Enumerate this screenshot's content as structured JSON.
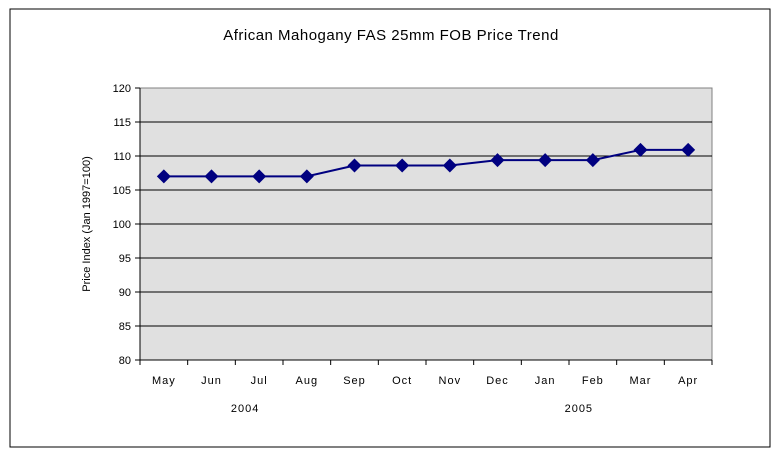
{
  "chart_data": {
    "type": "line",
    "title": "African Mahogany FAS 25mm FOB Price Trend",
    "xlabel": "",
    "ylabel": "Price Index (Jan 1997=100)",
    "categories": [
      "May",
      "Jun",
      "Jul",
      "Aug",
      "Sep",
      "Oct",
      "Nov",
      "Dec",
      "Jan",
      "Feb",
      "Mar",
      "Apr"
    ],
    "year_labels": [
      {
        "label": "2004",
        "category_index": 2
      },
      {
        "label": "2005",
        "category_index": 9
      }
    ],
    "series": [
      {
        "name": "Price Index",
        "color": "#000080",
        "values": [
          107,
          107,
          107,
          107,
          108.6,
          108.6,
          108.6,
          109.4,
          109.4,
          109.4,
          110.9,
          110.9
        ]
      }
    ],
    "ylim": [
      80,
      120
    ],
    "yticks": [
      80,
      85,
      90,
      95,
      100,
      105,
      110,
      115,
      120
    ],
    "grid": true,
    "legend": "none",
    "plot_bg": "#e0e0e0"
  }
}
